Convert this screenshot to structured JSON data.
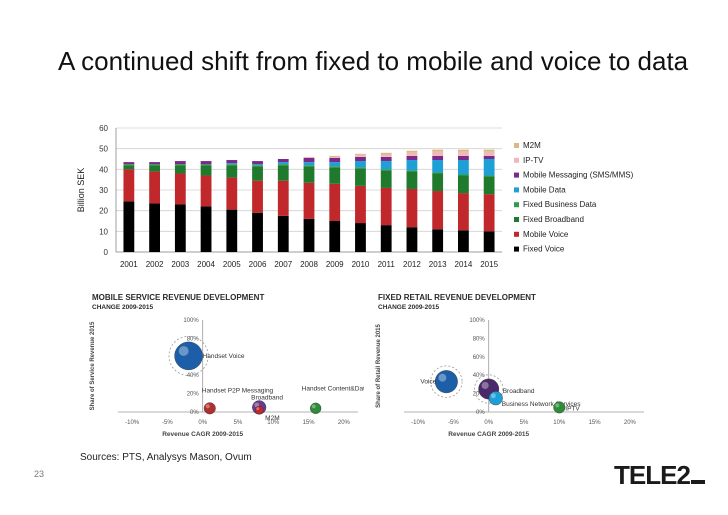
{
  "slide": {
    "title": "A continued shift from fixed to mobile and voice to data",
    "sources": "Sources: PTS, Analysys Mason,  Ovum",
    "page_number": "23",
    "logo_text": "TELE2"
  },
  "chart_data": [
    {
      "type": "bar",
      "stacked": true,
      "title": "",
      "xlabel": "",
      "ylabel": "Billion SEK",
      "ylim": [
        0,
        60
      ],
      "yticks": [
        0,
        10,
        20,
        30,
        40,
        50,
        60
      ],
      "grid": true,
      "legend_position": "right",
      "categories": [
        "2001",
        "2002",
        "2003",
        "2004",
        "2005",
        "2006",
        "2007",
        "2008",
        "2009",
        "2010",
        "2011",
        "2012",
        "2013",
        "2014",
        "2015"
      ],
      "series": [
        {
          "name": "Fixed Voice",
          "color": "#000000",
          "values": [
            24.5,
            23.5,
            23,
            22,
            20.5,
            19,
            17.5,
            16,
            15,
            14,
            13,
            12,
            11,
            10.5,
            10
          ]
        },
        {
          "name": "Mobile Voice",
          "color": "#c0282c",
          "values": [
            15.5,
            15.5,
            15,
            15,
            15.5,
            15.5,
            17,
            17.5,
            18,
            18,
            18,
            18.5,
            18.5,
            18,
            18
          ]
        },
        {
          "name": "Fixed Broadband",
          "color": "#1f7a2e",
          "values": [
            2,
            3,
            4,
            5,
            6,
            7,
            7.5,
            8,
            8,
            8.5,
            8.5,
            8.5,
            8.5,
            8.5,
            8.5
          ]
        },
        {
          "name": "Fixed Business Data",
          "color": "#2e9d4c",
          "values": [
            0.5,
            0.5,
            0.5,
            0.5,
            0.5,
            0.5,
            0.5,
            0.5,
            0.5,
            0.5,
            0.5,
            0.5,
            0.5,
            0.5,
            0.5
          ]
        },
        {
          "name": "Mobile Data",
          "color": "#1ea0d6",
          "values": [
            0,
            0,
            0,
            0,
            0.5,
            0.5,
            1,
            1.5,
            2,
            3,
            4,
            5,
            6,
            7,
            8
          ]
        },
        {
          "name": "Mobile Messaging (SMS/MMS)",
          "color": "#7a2a8a",
          "values": [
            1,
            1,
            1.5,
            1.5,
            1.5,
            1.5,
            1.5,
            2,
            2,
            2,
            2,
            2,
            2,
            2,
            1.5
          ]
        },
        {
          "name": "IP-TV",
          "color": "#f2b8b8",
          "values": [
            0,
            0,
            0,
            0,
            0,
            0,
            0,
            0.5,
            0.5,
            1,
            1,
            1.5,
            2,
            2,
            2
          ]
        },
        {
          "name": "M2M",
          "color": "#d9b98c",
          "values": [
            0,
            0,
            0,
            0,
            0,
            0,
            0,
            0,
            0.5,
            0.5,
            1,
            1,
            1,
            1,
            1
          ]
        }
      ]
    },
    {
      "type": "scatter",
      "title": "MOBILE SERVICE REVENUE DEVELOPMENT",
      "subtitle": "CHANGE 2009-2015",
      "xlabel": "Revenue CAGR 2009-2015",
      "ylabel": "Share of Service Revenue 2015",
      "xticks": [
        "-10%",
        "-5%",
        "0%",
        "5%",
        "10%",
        "15%",
        "20%"
      ],
      "yticks": [
        "0%",
        "20%",
        "40%",
        "80%",
        "100%"
      ],
      "xlim": [
        -12,
        22
      ],
      "ylim": [
        0,
        100
      ],
      "points": [
        {
          "label": "Handset Voice",
          "x": -2,
          "y": 61,
          "size": 1.0,
          "color": "#1c5fa8"
        },
        {
          "label": "Handset P2P Messaging",
          "x": 1,
          "y": 4,
          "size": 0.25,
          "color": "#b03030"
        },
        {
          "label": "Broadband",
          "x": 8,
          "y": 5,
          "size": 0.35,
          "color": "#6a3a8c"
        },
        {
          "label": "M2M",
          "x": 8,
          "y": 2,
          "size": 0.1,
          "color": "#c0282c"
        },
        {
          "label": "Handset Content&Data",
          "x": 16,
          "y": 4,
          "size": 0.22,
          "color": "#2e8b3a"
        }
      ]
    },
    {
      "type": "scatter",
      "title": "FIXED RETAIL REVENUE DEVELOPMENT",
      "subtitle": "CHANGE 2009-2015",
      "xlabel": "Revenue CAGR 2009-2015",
      "ylabel": "Share of Retail Revenue 2015",
      "xticks": [
        "-10%",
        "-5%",
        "0%",
        "5%",
        "10%",
        "15%",
        "20%"
      ],
      "yticks": [
        "0%",
        "20%",
        "40%",
        "60%",
        "80%",
        "100%"
      ],
      "xlim": [
        -12,
        22
      ],
      "ylim": [
        0,
        100
      ],
      "points": [
        {
          "label": "Voice",
          "x": -6,
          "y": 33,
          "size": 0.75,
          "color": "#1c5fa8"
        },
        {
          "label": "Broadband",
          "x": 0,
          "y": 25,
          "size": 0.65,
          "color": "#4a2a6a"
        },
        {
          "label": "Business Network Services",
          "x": 1,
          "y": 15,
          "size": 0.35,
          "color": "#1ea0d6"
        },
        {
          "label": "IPTV",
          "x": 10,
          "y": 5,
          "size": 0.25,
          "color": "#2e8b3a"
        }
      ]
    }
  ]
}
